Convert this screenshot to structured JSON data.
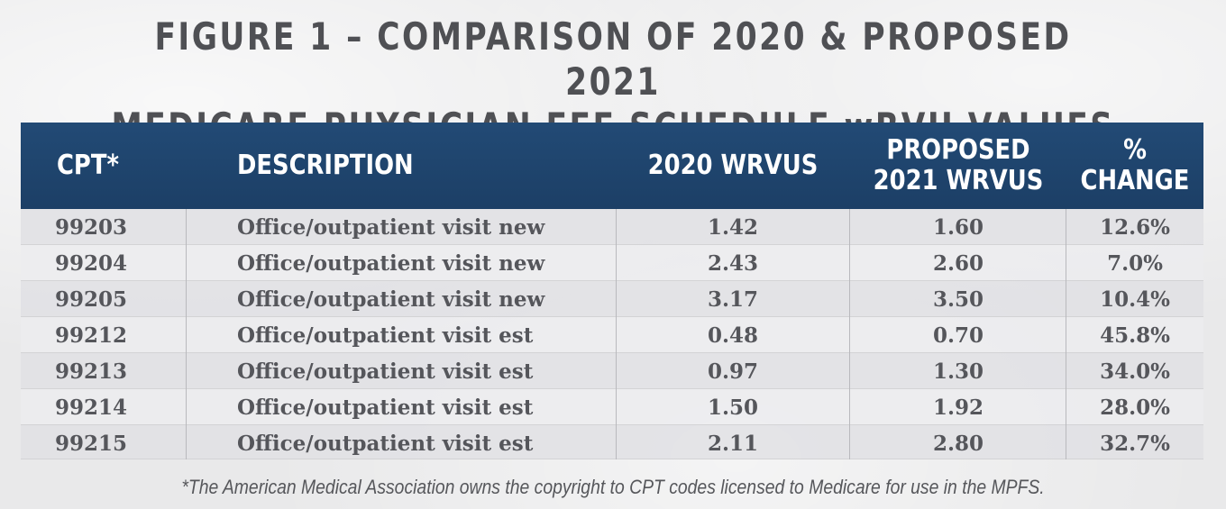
{
  "title": {
    "line1": "FIGURE 1 – COMPARISON OF 2020 & PROPOSED 2021",
    "line2": "MEDICARE PHYSICIAN FEE SCHEDULE wRVU VALUES"
  },
  "chart_data": {
    "type": "table",
    "columns": [
      "CPT*",
      "DESCRIPTION",
      "2020 WRVUS",
      "PROPOSED 2021 WRVUS",
      "% CHANGE"
    ],
    "header": {
      "cpt": "CPT*",
      "description": "DESCRIPTION",
      "wrvu_2020": "2020 WRVUS",
      "wrvu_2021_line1": "PROPOSED",
      "wrvu_2021_line2": "2021 WRVUS",
      "change_line1": "%",
      "change_line2": "CHANGE"
    },
    "rows": [
      {
        "cpt": "99203",
        "description": "Office/outpatient visit new",
        "wrvu_2020": "1.42",
        "wrvu_2021": "1.60",
        "change": "12.6%"
      },
      {
        "cpt": "99204",
        "description": "Office/outpatient visit new",
        "wrvu_2020": "2.43",
        "wrvu_2021": "2.60",
        "change": "7.0%"
      },
      {
        "cpt": "99205",
        "description": "Office/outpatient visit new",
        "wrvu_2020": "3.17",
        "wrvu_2021": "3.50",
        "change": "10.4%"
      },
      {
        "cpt": "99212",
        "description": "Office/outpatient visit est",
        "wrvu_2020": "0.48",
        "wrvu_2021": "0.70",
        "change": "45.8%"
      },
      {
        "cpt": "99213",
        "description": "Office/outpatient visit est",
        "wrvu_2020": "0.97",
        "wrvu_2021": "1.30",
        "change": "34.0%"
      },
      {
        "cpt": "99214",
        "description": "Office/outpatient visit est",
        "wrvu_2020": "1.50",
        "wrvu_2021": "1.92",
        "change": "28.0%"
      },
      {
        "cpt": "99215",
        "description": "Office/outpatient visit est",
        "wrvu_2020": "2.11",
        "wrvu_2021": "2.80",
        "change": "32.7%"
      }
    ]
  },
  "colors": {
    "header_bg": "#1f4570",
    "header_text": "#ffffff",
    "title_text": "#4f5054",
    "body_text": "#55565b"
  },
  "footnote": "*The American Medical Association owns the copyright to CPT codes licensed to Medicare for use in the MPFS."
}
